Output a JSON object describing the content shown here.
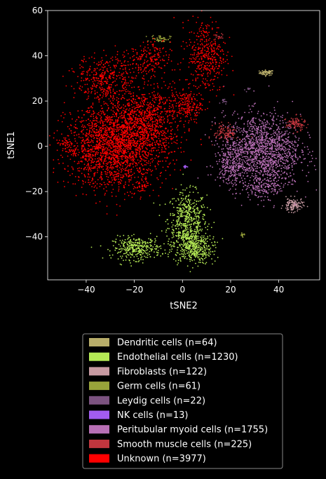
{
  "chart_data": {
    "type": "scatter",
    "title": "",
    "xlabel": "tSNE2",
    "ylabel": "tSNE1",
    "xlim": [
      -56,
      57
    ],
    "ylim": [
      -59,
      60
    ],
    "xticks": [
      -40,
      -20,
      0,
      20,
      40
    ],
    "yticks": [
      -40,
      -20,
      0,
      20,
      40,
      60
    ],
    "xtick_labels": [
      "−40",
      "−20",
      "0",
      "20",
      "40"
    ],
    "ytick_labels": [
      "−40",
      "−20",
      "0",
      "20",
      "40",
      "60"
    ],
    "grid": false,
    "legend_position": "below",
    "series": [
      {
        "name": "Dendritic cells (n=64)",
        "color": "#b8ad6a",
        "clusters": [
          {
            "cx": 35,
            "cy": 32.5,
            "sx": 1.5,
            "sy": 0.6,
            "n": 64
          }
        ]
      },
      {
        "name": "Endothelial cells (n=1230)",
        "color": "#b5ea55",
        "clusters": [
          {
            "cx": 2,
            "cy": -32,
            "sx": 4,
            "sy": 6,
            "n": 450
          },
          {
            "cx": 4,
            "cy": -44,
            "sx": 4,
            "sy": 4,
            "n": 400
          },
          {
            "cx": -19,
            "cy": -45,
            "sx": 5,
            "sy": 2.5,
            "n": 330
          },
          {
            "cx": 8,
            "cy": -47,
            "sx": 4,
            "sy": 2,
            "n": 50
          }
        ]
      },
      {
        "name": "Fibroblasts (n=122)",
        "color": "#c79aa2",
        "clusters": [
          {
            "cx": 46,
            "cy": -26,
            "sx": 2,
            "sy": 1.5,
            "n": 122
          }
        ]
      },
      {
        "name": "Germ cells (n=61)",
        "color": "#98a33a",
        "clusters": [
          {
            "cx": -9,
            "cy": 47.5,
            "sx": 2,
            "sy": 0.8,
            "n": 50
          },
          {
            "cx": 25,
            "cy": -39,
            "sx": 0.6,
            "sy": 0.5,
            "n": 11
          }
        ]
      },
      {
        "name": "Leydig cells (n=22)",
        "color": "#7c5380",
        "clusters": [
          {
            "cx": 17,
            "cy": 20,
            "sx": 0.6,
            "sy": 0.6,
            "n": 12
          },
          {
            "cx": 27,
            "cy": 25,
            "sx": 0.5,
            "sy": 0.5,
            "n": 10
          }
        ]
      },
      {
        "name": "NK cells (n=13)",
        "color": "#a25cf0",
        "clusters": [
          {
            "cx": 1,
            "cy": -9,
            "sx": 0.4,
            "sy": 0.4,
            "n": 13
          }
        ]
      },
      {
        "name": "Peritubular myoid cells (n=1755)",
        "color": "#b86fb5",
        "clusters": [
          {
            "cx": 33,
            "cy": -2,
            "sx": 8,
            "sy": 8,
            "n": 1400
          },
          {
            "cx": 20,
            "cy": -8,
            "sx": 3,
            "sy": 4,
            "n": 200
          },
          {
            "cx": 34,
            "cy": -18,
            "sx": 5,
            "sy": 2.5,
            "n": 155
          }
        ]
      },
      {
        "name": "Smooth muscle cells (n=225)",
        "color": "#c1363e",
        "clusters": [
          {
            "cx": 18,
            "cy": 6,
            "sx": 2.5,
            "sy": 2,
            "n": 110
          },
          {
            "cx": 47,
            "cy": 10,
            "sx": 2,
            "sy": 1.5,
            "n": 100
          },
          {
            "cx": 15,
            "cy": 48,
            "sx": 1,
            "sy": 1,
            "n": 15
          }
        ]
      },
      {
        "name": "Unknown (n=3977)",
        "color": "#ff0000",
        "clusters": [
          {
            "cx": -28,
            "cy": 0,
            "sx": 10,
            "sy": 9,
            "n": 2000
          },
          {
            "cx": -15,
            "cy": 12,
            "sx": 8,
            "sy": 8,
            "n": 800
          },
          {
            "cx": -32,
            "cy": 30,
            "sx": 6,
            "sy": 5,
            "n": 350
          },
          {
            "cx": -15,
            "cy": 38,
            "sx": 5,
            "sy": 4,
            "n": 200
          },
          {
            "cx": 10,
            "cy": 40,
            "sx": 4,
            "sy": 8,
            "n": 400
          },
          {
            "cx": 2,
            "cy": 18,
            "sx": 3,
            "sy": 3,
            "n": 150
          },
          {
            "cx": -17,
            "cy": -18,
            "sx": 1.5,
            "sy": 1.5,
            "n": 30
          },
          {
            "cx": -48,
            "cy": 0,
            "sx": 2,
            "sy": 2,
            "n": 47
          }
        ]
      }
    ]
  }
}
